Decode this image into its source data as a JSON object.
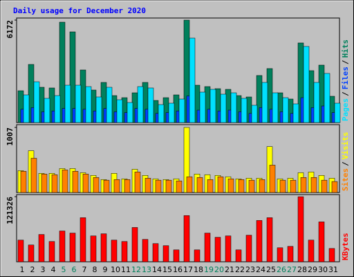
{
  "chart_data": [
    {
      "type": "bar",
      "title": "Daily usage for December 2020",
      "ylim": [
        0,
        6172
      ],
      "yticks": [
        6172
      ],
      "legend_separator": "/",
      "series": [
        {
          "name": "Pages",
          "color": "#00e0ff",
          "values": [
            1668,
            2460,
            1460,
            1626,
            2252,
            2252,
            2168,
            1543,
            2127,
            1376,
            1209,
            2168,
            2085,
            1084,
            1168,
            1418,
            5088,
            1835,
            2002,
            1710,
            1793,
            1460,
            1043,
            2419,
            1793,
            1501,
            1126,
            4587,
            2419,
            2961,
            1168
          ]
        },
        {
          "name": "Files",
          "color": "#0040ff",
          "values": [
            800,
            900,
            650,
            700,
            850,
            850,
            800,
            700,
            850,
            650,
            600,
            850,
            800,
            550,
            600,
            700,
            1600,
            750,
            800,
            700,
            750,
            650,
            550,
            900,
            800,
            650,
            550,
            1500,
            900,
            1000,
            600
          ]
        },
        {
          "name": "Hits",
          "color": "#00805c",
          "values": [
            1918,
            3503,
            2127,
            2085,
            6047,
            5463,
            3169,
            1960,
            2419,
            1626,
            1501,
            1793,
            2419,
            1334,
            1501,
            1668,
            6172,
            2252,
            2168,
            2043,
            2002,
            1626,
            1543,
            2836,
            3253,
            1793,
            1418,
            4796,
            3128,
            3461,
            1585
          ]
        }
      ]
    },
    {
      "type": "bar",
      "ylim": [
        0,
        1007
      ],
      "yticks": [
        1007
      ],
      "legend_separator": "/",
      "series": [
        {
          "name": "Sites",
          "color": "#ff8000",
          "values": [
            329,
            530,
            286,
            276,
            350,
            329,
            286,
            233,
            191,
            201,
            201,
            318,
            222,
            191,
            191,
            180,
            244,
            233,
            201,
            244,
            212,
            201,
            191,
            201,
            424,
            191,
            191,
            233,
            233,
            191,
            170
          ]
        },
        {
          "name": "Visits",
          "color": "#ffff00",
          "values": [
            339,
            647,
            297,
            297,
            371,
            371,
            307,
            265,
            201,
            297,
            212,
            360,
            265,
            212,
            201,
            212,
            1007,
            286,
            276,
            265,
            244,
            212,
            222,
            222,
            710,
            212,
            222,
            307,
            318,
            265,
            222
          ]
        }
      ]
    },
    {
      "type": "bar",
      "ylim": [
        0,
        121326
      ],
      "yticks": [
        121326
      ],
      "categories": [
        "1",
        "2",
        "3",
        "4",
        "5",
        "6",
        "7",
        "8",
        "9",
        "10",
        "11",
        "12",
        "13",
        "14",
        "15",
        "16",
        "17",
        "18",
        "19",
        "20",
        "21",
        "22",
        "23",
        "24",
        "25",
        "26",
        "27",
        "28",
        "29",
        "30",
        "31"
      ],
      "category_colors": [
        "#000000",
        "#000000",
        "#000000",
        "#000000",
        "#00805c",
        "#00805c",
        "#000000",
        "#000000",
        "#000000",
        "#000000",
        "#000000",
        "#00805c",
        "#00805c",
        "#000000",
        "#000000",
        "#000000",
        "#000000",
        "#000000",
        "#00805c",
        "#00805c",
        "#000000",
        "#000000",
        "#000000",
        "#000000",
        "#000000",
        "#00805c",
        "#00805c",
        "#000000",
        "#000000",
        "#000000",
        "#000000"
      ],
      "series": [
        {
          "name": "KBytes",
          "color": "#ff0000",
          "values": [
            40442,
            31310,
            50879,
            37833,
            57403,
            53488,
            82189,
            48270,
            52183,
            40442,
            37833,
            63925,
            41747,
            33918,
            30005,
            22178,
            86103,
            22178,
            53488,
            45660,
            48270,
            22178,
            49574,
            76971,
            82189,
            26092,
            28701,
            121326,
            40442,
            74362,
            24787
          ]
        }
      ]
    }
  ]
}
